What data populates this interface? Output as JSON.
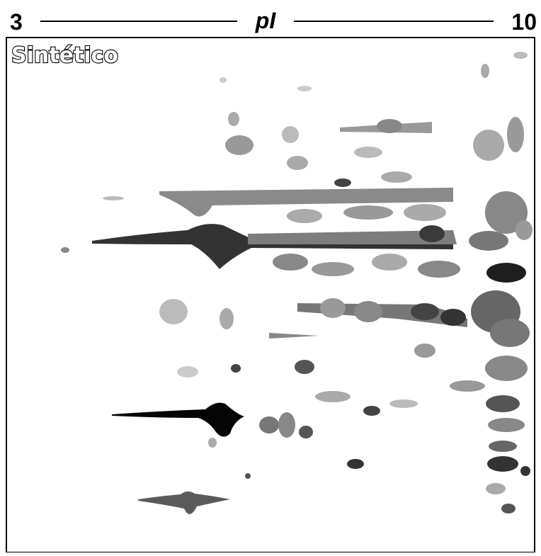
{
  "axis": {
    "left": "3",
    "label": "pI",
    "right": "10"
  },
  "panel": {
    "label": "Sintético"
  }
}
